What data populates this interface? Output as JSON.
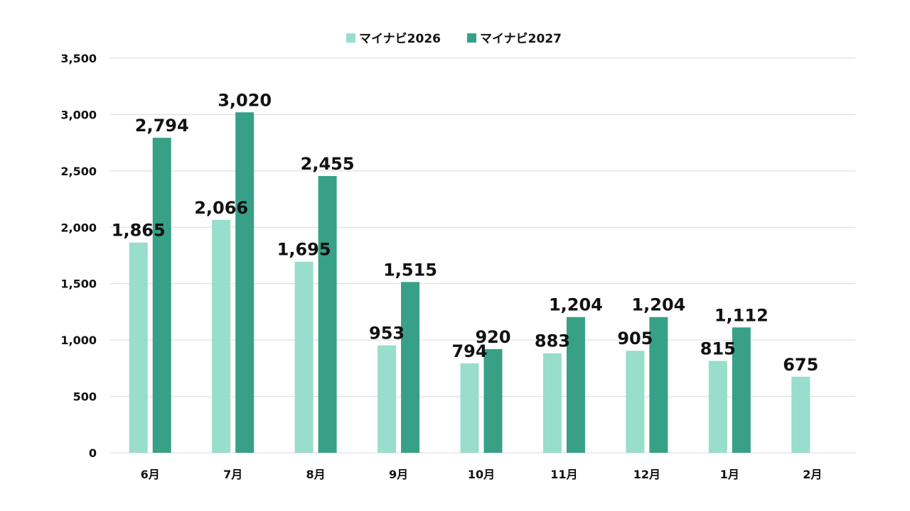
{
  "chart_data": {
    "type": "bar",
    "categories": [
      "6月",
      "7月",
      "8月",
      "9月",
      "10月",
      "11月",
      "12月",
      "1月",
      "2月"
    ],
    "series": [
      {
        "name": "マイナビ2026",
        "values": [
          1865,
          2066,
          1695,
          953,
          794,
          883,
          905,
          815,
          675
        ],
        "color": "#99ddcc"
      },
      {
        "name": "マイナビ2027",
        "values": [
          2794,
          3020,
          2455,
          1515,
          920,
          1204,
          1204,
          1112,
          null
        ],
        "color": "#38a087"
      }
    ],
    "ylim": [
      0,
      3500
    ],
    "yticks": [
      0,
      500,
      1000,
      1500,
      2000,
      2500,
      3000,
      3500
    ],
    "ytick_labels": [
      "0",
      "500",
      "1,000",
      "1,500",
      "2,000",
      "2,500",
      "3,000",
      "3,500"
    ],
    "data_labels": [
      [
        "1,865",
        "2,066",
        "1,695",
        "953",
        "794",
        "883",
        "905",
        "815",
        "675"
      ],
      [
        "2,794",
        "3,020",
        "2,455",
        "1,515",
        "920",
        "1,204",
        "1,204",
        "1,112",
        ""
      ]
    ],
    "legend_position": "top-center",
    "grid": true,
    "title": "",
    "xlabel": "",
    "ylabel": ""
  }
}
